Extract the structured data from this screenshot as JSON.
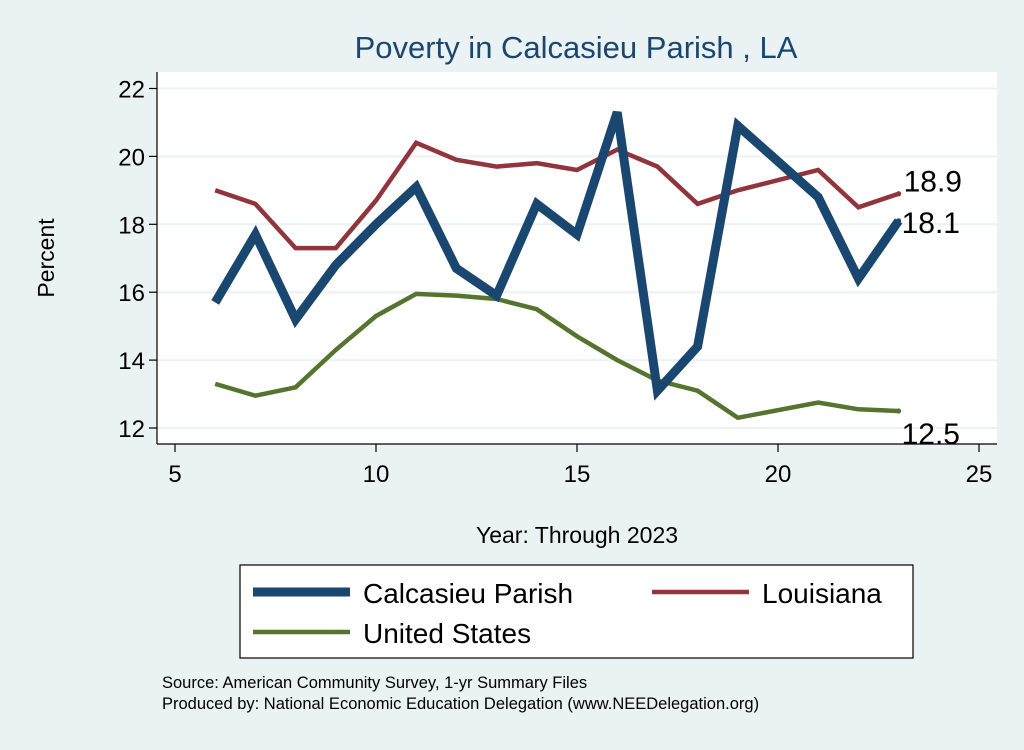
{
  "chart_data": {
    "type": "line",
    "title": "Poverty in Calcasieu Parish , LA",
    "xlabel": "Year: Through 2023",
    "ylabel": "Percent",
    "xlim": [
      5,
      25
    ],
    "ylim": [
      11.5,
      22.5
    ],
    "x_ticks": [
      5,
      10,
      15,
      20,
      25
    ],
    "y_ticks": [
      12,
      14,
      16,
      18,
      20,
      22
    ],
    "grid": true,
    "legend_position": "bottom",
    "series": [
      {
        "name": "Calcasieu Parish",
        "color": "#1a476f",
        "weight": "thick",
        "x": [
          6,
          7,
          8,
          9,
          10,
          11,
          12,
          13,
          14,
          15,
          16,
          17,
          18,
          19,
          21,
          22,
          23
        ],
        "values": [
          15.7,
          17.7,
          15.2,
          16.8,
          18.0,
          19.1,
          16.7,
          15.9,
          18.6,
          17.7,
          21.3,
          13.1,
          14.4,
          20.9,
          18.8,
          16.4,
          18.1
        ],
        "end_label": "18.1"
      },
      {
        "name": "Louisiana",
        "color": "#90353b",
        "weight": "medium",
        "x": [
          6,
          7,
          8,
          9,
          10,
          11,
          12,
          13,
          14,
          15,
          16,
          17,
          18,
          19,
          21,
          22,
          23
        ],
        "values": [
          19.0,
          18.6,
          17.3,
          17.3,
          18.7,
          20.4,
          19.9,
          19.7,
          19.8,
          19.6,
          20.2,
          19.7,
          18.6,
          19.0,
          19.6,
          18.5,
          18.9
        ],
        "end_label": "18.9"
      },
      {
        "name": "United States",
        "color": "#55752f",
        "weight": "medium",
        "x": [
          6,
          7,
          8,
          9,
          10,
          11,
          12,
          13,
          14,
          15,
          16,
          17,
          18,
          19,
          21,
          22,
          23
        ],
        "values": [
          13.3,
          12.95,
          13.2,
          14.3,
          15.3,
          15.95,
          15.9,
          15.8,
          15.5,
          14.7,
          14.0,
          13.4,
          13.1,
          12.3,
          12.75,
          12.55,
          12.5
        ],
        "end_label": "12.5"
      }
    ],
    "notes": [
      "Source: American Community Survey, 1-yr Summary Files",
      "Produced by: National Economic Education Delegation (www.NEEDelegation.org)"
    ]
  }
}
